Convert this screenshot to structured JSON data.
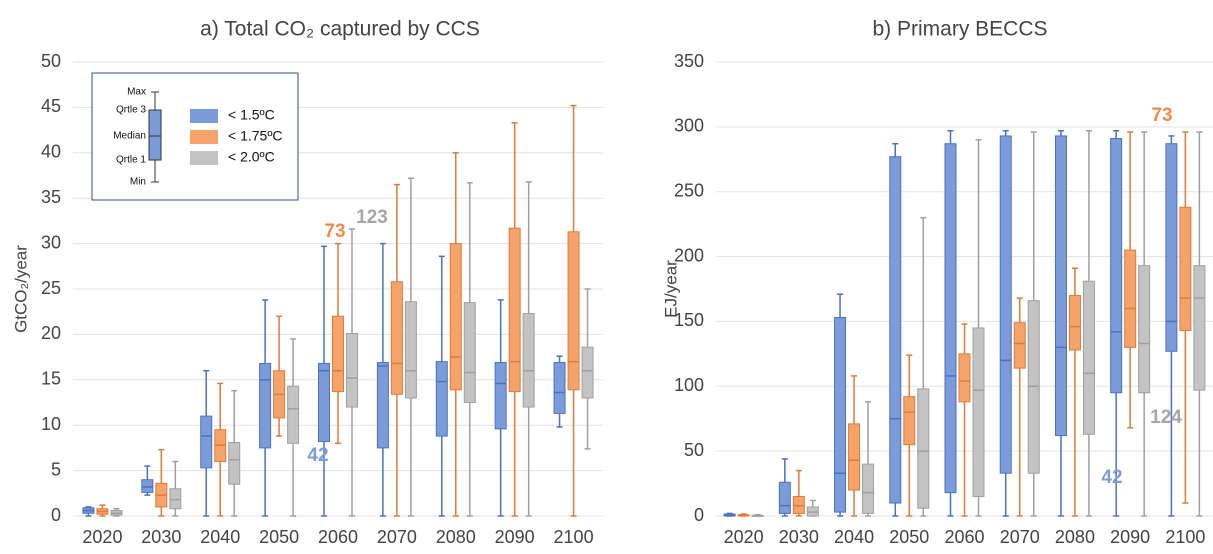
{
  "chart_data": [
    {
      "type": "box",
      "title": "a) Total CO₂ captured by CCS",
      "y_label": "GtCO₂/year",
      "categories": [
        "2020",
        "2030",
        "2040",
        "2050",
        "2060",
        "2070",
        "2080",
        "2090",
        "2100"
      ],
      "ylim": [
        0,
        50
      ],
      "yticks": [
        0,
        5,
        10,
        15,
        20,
        25,
        30,
        35,
        40,
        45,
        50
      ],
      "grid": true,
      "legend_key_labels": [
        "Max",
        "Qrtle 3",
        "Median",
        "Qrtle 1",
        "Min"
      ],
      "series": [
        {
          "name": "< 1.5ºC",
          "color": "#7b9bd9",
          "edge": "#4a72c4",
          "min": [
            0,
            2.3,
            0,
            0,
            0,
            0,
            0,
            0,
            9.8
          ],
          "q1": [
            0.3,
            2.6,
            5.3,
            7.5,
            8.2,
            7.5,
            8.8,
            9.6,
            11.3
          ],
          "median": [
            0.6,
            3.2,
            8.8,
            15,
            16,
            16.5,
            14.8,
            14.6,
            13.6
          ],
          "q3": [
            0.9,
            4,
            11,
            16.8,
            16.8,
            16.9,
            17,
            16.9,
            16.9
          ],
          "max": [
            1,
            5.5,
            16,
            23.8,
            29.7,
            30,
            28.6,
            23.8,
            17.6
          ]
        },
        {
          "name": "< 1.75ºC",
          "color": "#f4a46a",
          "edge": "#e07b39",
          "min": [
            0,
            0,
            0,
            8.8,
            8,
            0,
            0,
            0,
            0
          ],
          "q1": [
            0.2,
            1,
            6,
            10.8,
            13.7,
            13.4,
            13.9,
            13.7,
            13.9
          ],
          "median": [
            0.5,
            2.3,
            7.8,
            13.4,
            16,
            16.8,
            17.5,
            17,
            17
          ],
          "q3": [
            0.8,
            3.6,
            9.5,
            16,
            22,
            25.8,
            30,
            31.7,
            31.3
          ],
          "max": [
            1.2,
            7.3,
            14.6,
            22,
            30,
            36.5,
            40,
            43.3,
            45.2
          ]
        },
        {
          "name": "< 2.0ºC",
          "color": "#c3c3c3",
          "edge": "#a0a0a0",
          "min": [
            0,
            0,
            0,
            0,
            0,
            0,
            0,
            0,
            7.4
          ],
          "q1": [
            0.1,
            0.8,
            3.5,
            8,
            12,
            13,
            12.5,
            12,
            13
          ],
          "median": [
            0.3,
            1.8,
            6.2,
            11.8,
            15.2,
            16,
            15.8,
            16,
            16
          ],
          "q3": [
            0.6,
            3,
            8.1,
            14.3,
            20.1,
            23.6,
            23.5,
            22.3,
            18.6
          ],
          "max": [
            0.8,
            6,
            13.8,
            19.5,
            31.6,
            37.2,
            36.7,
            36.8,
            25
          ]
        }
      ],
      "annotations": [
        {
          "text": "73",
          "color": "#ef8c4a"
        },
        {
          "text": "123",
          "color": "#a6a6a6"
        },
        {
          "text": "42",
          "color": "#7b9bd9"
        }
      ]
    },
    {
      "type": "box",
      "title": "b) Primary BECCS",
      "y_label": "EJ/year",
      "categories": [
        "2020",
        "2030",
        "2040",
        "2050",
        "2060",
        "2070",
        "2080",
        "2090",
        "2100"
      ],
      "ylim": [
        0,
        350
      ],
      "yticks": [
        0,
        50,
        100,
        150,
        200,
        250,
        300,
        350
      ],
      "grid": true,
      "series": [
        {
          "color": "#7b9bd9",
          "edge": "#4a72c4",
          "min": [
            0,
            0,
            0,
            0,
            0,
            0,
            0,
            0,
            0
          ],
          "q1": [
            0,
            2,
            3,
            10,
            18,
            33,
            62,
            95,
            127
          ],
          "median": [
            1,
            8,
            33,
            75,
            108,
            120,
            130,
            142,
            150
          ],
          "q3": [
            1.5,
            26,
            153,
            277,
            287,
            293,
            293,
            291,
            287
          ],
          "max": [
            2,
            44,
            171,
            287,
            297,
            297,
            297,
            297,
            293
          ]
        },
        {
          "color": "#f4a46a",
          "edge": "#e07b39",
          "min": [
            0,
            0,
            0,
            0,
            0,
            0,
            0,
            68,
            10
          ],
          "q1": [
            0,
            2,
            20,
            55,
            88,
            114,
            128,
            130,
            143
          ],
          "median": [
            0.5,
            8,
            43,
            80,
            104,
            133,
            146,
            160,
            168
          ],
          "q3": [
            1,
            15,
            71,
            92,
            125,
            149,
            170,
            205,
            238
          ],
          "max": [
            1.5,
            35,
            108,
            124,
            148,
            168,
            191,
            296,
            296
          ]
        },
        {
          "color": "#c3c3c3",
          "edge": "#a0a0a0",
          "min": [
            0,
            0,
            0,
            0,
            0,
            0,
            0,
            0,
            0
          ],
          "q1": [
            0,
            0,
            2,
            6,
            15,
            33,
            63,
            95,
            97
          ],
          "median": [
            0,
            3,
            18,
            50,
            97,
            100,
            110,
            133,
            168
          ],
          "q3": [
            0.5,
            7,
            40,
            98,
            145,
            166,
            181,
            193,
            193
          ],
          "max": [
            1,
            12,
            88,
            230,
            290,
            296,
            297,
            296,
            296
          ]
        }
      ],
      "annotations": [
        {
          "text": "73",
          "color": "#ef8c4a"
        },
        {
          "text": "124",
          "color": "#a6a6a6"
        },
        {
          "text": "42",
          "color": "#7b9bd9"
        }
      ]
    }
  ]
}
